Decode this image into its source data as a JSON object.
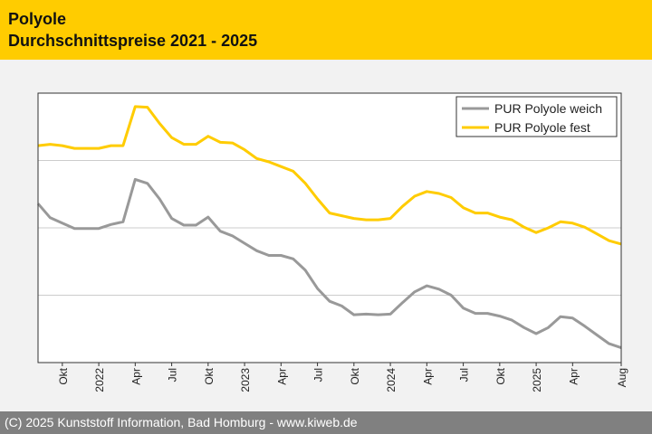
{
  "header": {
    "title": "Polyole",
    "subtitle": "Durchschnittspreise 2021 - 2025"
  },
  "footer": {
    "credit": "(C) 2025 Kunststoff Information, Bad Homburg - www.kiweb.de"
  },
  "colors": {
    "header_bg": "#ffcc00",
    "footer_bg": "#808080",
    "series_weich": "#999999",
    "series_fest": "#ffcc00",
    "gridline": "#cccccc"
  },
  "chart_data": {
    "type": "line",
    "title": "Durchschnittspreise 2021 - 2025",
    "x_axis": {
      "type": "monthly",
      "start": "2021-08",
      "end": "2025-08",
      "tick_labels": [
        {
          "month": "2021-10",
          "label": "Okt"
        },
        {
          "month": "2022-01",
          "label": "2022"
        },
        {
          "month": "2022-04",
          "label": "Apr"
        },
        {
          "month": "2022-07",
          "label": "Jul"
        },
        {
          "month": "2022-10",
          "label": "Okt"
        },
        {
          "month": "2023-01",
          "label": "2023"
        },
        {
          "month": "2023-04",
          "label": "Apr"
        },
        {
          "month": "2023-07",
          "label": "Jul"
        },
        {
          "month": "2023-10",
          "label": "Okt"
        },
        {
          "month": "2024-01",
          "label": "2024"
        },
        {
          "month": "2024-04",
          "label": "Apr"
        },
        {
          "month": "2024-07",
          "label": "Jul"
        },
        {
          "month": "2024-10",
          "label": "Okt"
        },
        {
          "month": "2025-01",
          "label": "2025"
        },
        {
          "month": "2025-04",
          "label": "Apr"
        },
        {
          "month": "2025-08",
          "label": "Aug"
        }
      ]
    },
    "y_axis": {
      "tick_labels_shown": false,
      "ylim": [
        0,
        4
      ],
      "gridlines": [
        1,
        2,
        3
      ]
    },
    "grid": true,
    "legend_position": "top-right",
    "series": [
      {
        "name": "PUR Polyole weich",
        "color": "#999999",
        "points": [
          {
            "x": "2021-08",
            "y": 2.36
          },
          {
            "x": "2021-09",
            "y": 2.15
          },
          {
            "x": "2021-10",
            "y": 2.07
          },
          {
            "x": "2021-11",
            "y": 1.99
          },
          {
            "x": "2021-12",
            "y": 1.99
          },
          {
            "x": "2022-01",
            "y": 1.99
          },
          {
            "x": "2022-02",
            "y": 2.05
          },
          {
            "x": "2022-03",
            "y": 2.09
          },
          {
            "x": "2022-04",
            "y": 2.72
          },
          {
            "x": "2022-05",
            "y": 2.66
          },
          {
            "x": "2022-06",
            "y": 2.43
          },
          {
            "x": "2022-07",
            "y": 2.14
          },
          {
            "x": "2022-08",
            "y": 2.04
          },
          {
            "x": "2022-09",
            "y": 2.04
          },
          {
            "x": "2022-10",
            "y": 2.16
          },
          {
            "x": "2022-11",
            "y": 1.95
          },
          {
            "x": "2022-12",
            "y": 1.88
          },
          {
            "x": "2023-01",
            "y": 1.77
          },
          {
            "x": "2023-02",
            "y": 1.66
          },
          {
            "x": "2023-03",
            "y": 1.59
          },
          {
            "x": "2023-04",
            "y": 1.59
          },
          {
            "x": "2023-05",
            "y": 1.54
          },
          {
            "x": "2023-06",
            "y": 1.37
          },
          {
            "x": "2023-07",
            "y": 1.1
          },
          {
            "x": "2023-08",
            "y": 0.91
          },
          {
            "x": "2023-09",
            "y": 0.84
          },
          {
            "x": "2023-10",
            "y": 0.71
          },
          {
            "x": "2023-11",
            "y": 0.72
          },
          {
            "x": "2023-12",
            "y": 0.71
          },
          {
            "x": "2024-01",
            "y": 0.72
          },
          {
            "x": "2024-02",
            "y": 0.89
          },
          {
            "x": "2024-03",
            "y": 1.05
          },
          {
            "x": "2024-04",
            "y": 1.14
          },
          {
            "x": "2024-05",
            "y": 1.09
          },
          {
            "x": "2024-06",
            "y": 1.0
          },
          {
            "x": "2024-07",
            "y": 0.81
          },
          {
            "x": "2024-08",
            "y": 0.73
          },
          {
            "x": "2024-09",
            "y": 0.73
          },
          {
            "x": "2024-10",
            "y": 0.69
          },
          {
            "x": "2024-11",
            "y": 0.63
          },
          {
            "x": "2024-12",
            "y": 0.52
          },
          {
            "x": "2025-01",
            "y": 0.43
          },
          {
            "x": "2025-02",
            "y": 0.52
          },
          {
            "x": "2025-03",
            "y": 0.68
          },
          {
            "x": "2025-04",
            "y": 0.66
          },
          {
            "x": "2025-05",
            "y": 0.54
          },
          {
            "x": "2025-06",
            "y": 0.41
          },
          {
            "x": "2025-07",
            "y": 0.28
          },
          {
            "x": "2025-08",
            "y": 0.22
          }
        ]
      },
      {
        "name": "PUR Polyole fest",
        "color": "#ffcc00",
        "points": [
          {
            "x": "2021-08",
            "y": 3.22
          },
          {
            "x": "2021-09",
            "y": 3.24
          },
          {
            "x": "2021-10",
            "y": 3.22
          },
          {
            "x": "2021-11",
            "y": 3.18
          },
          {
            "x": "2021-12",
            "y": 3.18
          },
          {
            "x": "2022-01",
            "y": 3.18
          },
          {
            "x": "2022-02",
            "y": 3.22
          },
          {
            "x": "2022-03",
            "y": 3.22
          },
          {
            "x": "2022-04",
            "y": 3.8
          },
          {
            "x": "2022-05",
            "y": 3.79
          },
          {
            "x": "2022-06",
            "y": 3.55
          },
          {
            "x": "2022-07",
            "y": 3.34
          },
          {
            "x": "2022-08",
            "y": 3.24
          },
          {
            "x": "2022-09",
            "y": 3.24
          },
          {
            "x": "2022-10",
            "y": 3.36
          },
          {
            "x": "2022-11",
            "y": 3.27
          },
          {
            "x": "2022-12",
            "y": 3.26
          },
          {
            "x": "2023-01",
            "y": 3.16
          },
          {
            "x": "2023-02",
            "y": 3.03
          },
          {
            "x": "2023-03",
            "y": 2.98
          },
          {
            "x": "2023-04",
            "y": 2.91
          },
          {
            "x": "2023-05",
            "y": 2.84
          },
          {
            "x": "2023-06",
            "y": 2.66
          },
          {
            "x": "2023-07",
            "y": 2.43
          },
          {
            "x": "2023-08",
            "y": 2.22
          },
          {
            "x": "2023-09",
            "y": 2.18
          },
          {
            "x": "2023-10",
            "y": 2.14
          },
          {
            "x": "2023-11",
            "y": 2.12
          },
          {
            "x": "2023-12",
            "y": 2.12
          },
          {
            "x": "2024-01",
            "y": 2.14
          },
          {
            "x": "2024-02",
            "y": 2.32
          },
          {
            "x": "2024-03",
            "y": 2.47
          },
          {
            "x": "2024-04",
            "y": 2.54
          },
          {
            "x": "2024-05",
            "y": 2.51
          },
          {
            "x": "2024-06",
            "y": 2.45
          },
          {
            "x": "2024-07",
            "y": 2.3
          },
          {
            "x": "2024-08",
            "y": 2.22
          },
          {
            "x": "2024-09",
            "y": 2.22
          },
          {
            "x": "2024-10",
            "y": 2.16
          },
          {
            "x": "2024-11",
            "y": 2.12
          },
          {
            "x": "2024-12",
            "y": 2.01
          },
          {
            "x": "2025-01",
            "y": 1.93
          },
          {
            "x": "2025-02",
            "y": 2.0
          },
          {
            "x": "2025-03",
            "y": 2.09
          },
          {
            "x": "2025-04",
            "y": 2.07
          },
          {
            "x": "2025-05",
            "y": 2.01
          },
          {
            "x": "2025-06",
            "y": 1.91
          },
          {
            "x": "2025-07",
            "y": 1.81
          },
          {
            "x": "2025-08",
            "y": 1.76
          }
        ]
      }
    ]
  }
}
